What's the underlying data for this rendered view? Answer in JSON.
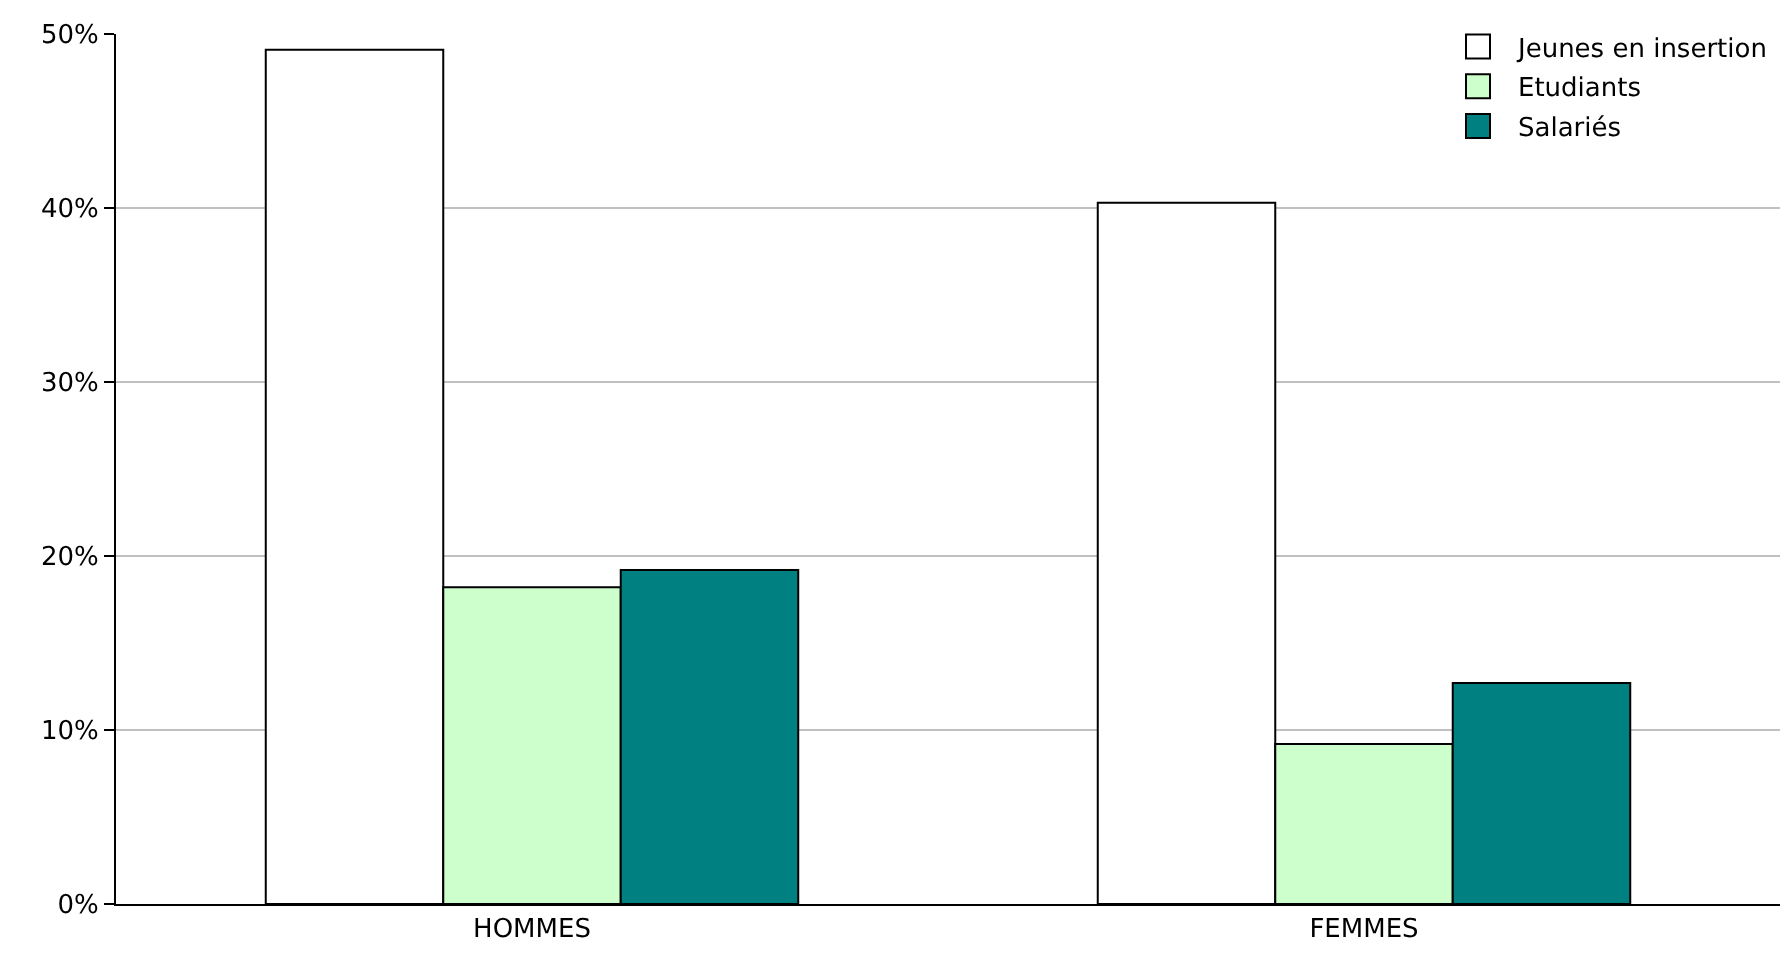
{
  "chart_data": {
    "type": "bar",
    "categories": [
      "HOMMES",
      "FEMMES"
    ],
    "series": [
      {
        "name": "Jeunes en insertion",
        "color": "#ffffff",
        "values": [
          49.1,
          40.3
        ]
      },
      {
        "name": "Etudiants",
        "color": "#ccffcc",
        "values": [
          18.2,
          9.2
        ]
      },
      {
        "name": "Salariés",
        "color": "#008080",
        "values": [
          19.2,
          12.7
        ]
      }
    ],
    "ylim": [
      0,
      50
    ],
    "yticks": [
      {
        "value": 0,
        "label": "0%"
      },
      {
        "value": 10,
        "label": "10%"
      },
      {
        "value": 20,
        "label": "20%"
      },
      {
        "value": 30,
        "label": "30%"
      },
      {
        "value": 40,
        "label": "40%"
      },
      {
        "value": 50,
        "label": "50%"
      }
    ],
    "grid": "y",
    "legend": "top right"
  }
}
